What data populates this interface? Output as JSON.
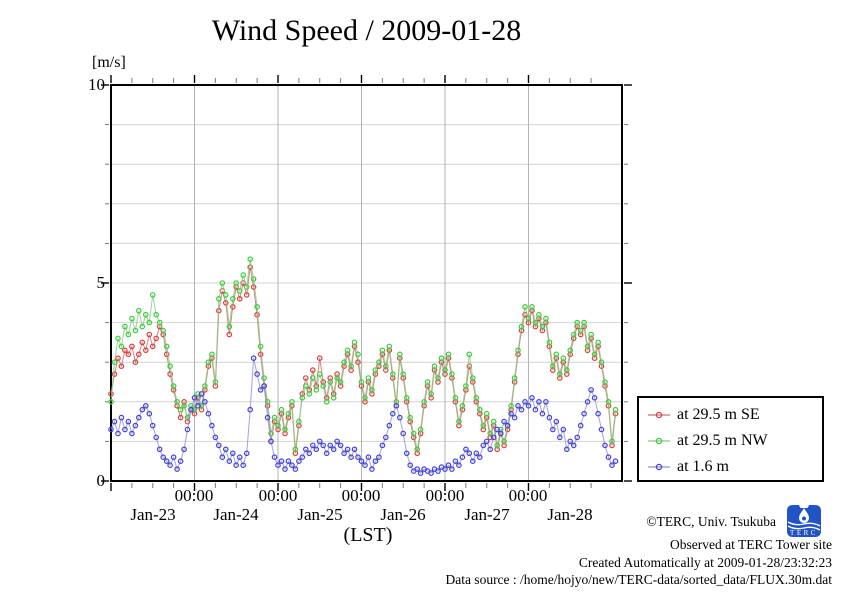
{
  "chart_data": {
    "type": "line",
    "title": "Wind Speed / 2009-01-28",
    "xlabel": "(LST)",
    "ylabel": "[m/s]",
    "ylim": [
      0,
      10
    ],
    "xlim_days": [
      0,
      6.12
    ],
    "x_start_hour": 0,
    "x_step_hours": 1,
    "x_unit": "hours since 2009-01-23 00:00 LST",
    "grid": true,
    "legend_position": "outside-right-bottom",
    "y_tick_labels": [
      "10",
      "5",
      "0"
    ],
    "y_minor_tick_step": 1,
    "x_major_tick_days": [
      1,
      2,
      3,
      4,
      5
    ],
    "x_major_tick_labels": [
      "00:00",
      "00:00",
      "00:00",
      "00:00",
      "00:00"
    ],
    "x_minor_tick_hours": 6,
    "x_day_labels": [
      "Jan-23",
      "Jan-24",
      "Jan-25",
      "Jan-26",
      "Jan-27",
      "Jan-28"
    ],
    "series": [
      {
        "name": "at 29.5 m SE",
        "marker_color": "#e03c3c",
        "line_color": "#cc7070",
        "values": [
          2.2,
          2.7,
          3.1,
          2.9,
          3.3,
          3.2,
          3.4,
          3.0,
          3.2,
          3.5,
          3.3,
          3.7,
          3.4,
          3.6,
          3.9,
          3.7,
          3.2,
          2.7,
          2.3,
          1.9,
          1.6,
          2.0,
          1.5,
          1.8,
          1.7,
          2.1,
          1.8,
          2.3,
          2.9,
          3.1,
          2.4,
          4.3,
          4.8,
          4.5,
          3.7,
          4.4,
          4.9,
          4.6,
          5.0,
          4.7,
          5.4,
          4.9,
          4.2,
          3.2,
          2.4,
          1.9,
          1.0,
          1.5,
          1.3,
          1.7,
          1.2,
          1.6,
          1.9,
          0.7,
          1.4,
          2.2,
          2.6,
          2.3,
          2.8,
          2.4,
          3.1,
          2.5,
          2.1,
          2.6,
          2.2,
          2.7,
          2.4,
          2.9,
          3.2,
          2.8,
          3.4,
          3.0,
          2.4,
          2.0,
          2.5,
          2.2,
          2.7,
          2.9,
          3.2,
          2.8,
          3.3,
          2.6,
          1.9,
          3.1,
          2.6,
          2.0,
          1.5,
          1.1,
          0.7,
          1.2,
          1.9,
          2.4,
          2.1,
          2.8,
          2.5,
          3.0,
          2.7,
          3.1,
          2.6,
          2.0,
          1.4,
          1.8,
          2.3,
          2.9,
          2.5,
          2.0,
          1.7,
          1.3,
          1.6,
          1.1,
          1.4,
          0.8,
          1.2,
          0.9,
          1.3,
          1.8,
          2.5,
          3.2,
          3.8,
          4.2,
          4.0,
          4.3,
          3.9,
          4.1,
          3.8,
          4.0,
          3.4,
          2.8,
          3.1,
          2.6,
          3.0,
          2.7,
          3.2,
          3.6,
          3.9,
          3.7,
          3.9,
          3.3,
          3.6,
          3.1,
          3.4,
          2.9,
          2.4,
          1.9,
          0.9,
          1.7
        ]
      },
      {
        "name": "at 29.5 m NW",
        "marker_color": "#3ccc3c",
        "line_color": "#84cc84",
        "values": [
          2.0,
          3.0,
          3.6,
          3.4,
          3.9,
          3.7,
          4.1,
          3.8,
          4.3,
          3.9,
          4.2,
          4.0,
          4.7,
          4.2,
          4.0,
          3.8,
          3.4,
          2.9,
          2.4,
          2.0,
          1.8,
          1.9,
          1.6,
          1.9,
          1.8,
          2.2,
          1.9,
          2.4,
          3.0,
          3.2,
          2.5,
          4.6,
          5.0,
          4.7,
          3.9,
          4.6,
          5.0,
          4.8,
          5.2,
          4.9,
          5.6,
          5.1,
          4.4,
          3.4,
          2.6,
          2.0,
          1.2,
          1.6,
          1.4,
          1.8,
          1.3,
          1.7,
          2.0,
          0.8,
          1.5,
          2.1,
          2.4,
          2.2,
          2.6,
          2.3,
          2.7,
          2.4,
          2.0,
          2.5,
          2.1,
          2.6,
          2.5,
          3.0,
          3.3,
          2.9,
          3.5,
          3.2,
          2.5,
          2.1,
          2.6,
          2.3,
          2.8,
          3.0,
          3.3,
          2.9,
          3.4,
          2.7,
          2.0,
          3.2,
          2.7,
          2.1,
          1.6,
          1.2,
          0.8,
          1.3,
          2.0,
          2.5,
          2.2,
          2.9,
          2.6,
          3.1,
          2.8,
          3.2,
          2.7,
          2.1,
          1.5,
          1.9,
          2.4,
          3.2,
          2.6,
          2.1,
          1.8,
          1.4,
          1.7,
          1.2,
          1.5,
          0.9,
          1.3,
          1.0,
          1.4,
          1.9,
          2.6,
          3.3,
          3.9,
          4.4,
          4.1,
          4.4,
          4.0,
          4.2,
          3.9,
          4.1,
          3.5,
          2.9,
          3.2,
          2.7,
          3.1,
          2.8,
          3.3,
          3.7,
          4.0,
          3.8,
          4.0,
          3.4,
          3.7,
          3.2,
          3.5,
          3.0,
          2.5,
          2.0,
          1.0,
          1.8
        ]
      },
      {
        "name": "at 1.6 m",
        "marker_color": "#4242d8",
        "line_color": "#9090dd",
        "values": [
          1.3,
          1.5,
          1.2,
          1.6,
          1.3,
          1.5,
          1.2,
          1.4,
          1.6,
          1.8,
          1.9,
          1.7,
          1.4,
          1.1,
          0.8,
          0.6,
          0.5,
          0.4,
          0.6,
          0.3,
          0.5,
          0.8,
          1.3,
          1.8,
          2.1,
          1.9,
          2.2,
          2.0,
          1.7,
          1.4,
          1.1,
          0.9,
          0.6,
          0.8,
          0.5,
          0.7,
          0.4,
          0.6,
          0.4,
          0.7,
          1.8,
          3.1,
          2.7,
          2.3,
          2.4,
          1.6,
          1.0,
          0.6,
          0.4,
          0.5,
          0.3,
          0.5,
          0.4,
          0.3,
          0.5,
          0.6,
          0.8,
          0.7,
          0.9,
          0.8,
          1.0,
          0.9,
          0.7,
          0.9,
          0.8,
          1.0,
          0.9,
          0.7,
          0.8,
          0.6,
          0.8,
          0.6,
          0.5,
          0.4,
          0.6,
          0.3,
          0.5,
          0.6,
          0.9,
          1.1,
          1.4,
          1.7,
          1.9,
          1.6,
          1.2,
          0.7,
          0.4,
          0.25,
          0.3,
          0.2,
          0.3,
          0.25,
          0.2,
          0.3,
          0.25,
          0.35,
          0.3,
          0.4,
          0.3,
          0.5,
          0.4,
          0.6,
          0.8,
          0.7,
          0.5,
          0.7,
          0.6,
          0.9,
          1.0,
          0.8,
          1.1,
          1.3,
          1.2,
          1.5,
          1.4,
          1.7,
          1.6,
          1.9,
          1.8,
          2.0,
          1.9,
          2.1,
          1.8,
          2.0,
          1.7,
          2.0,
          1.6,
          1.3,
          1.5,
          1.1,
          1.3,
          0.8,
          1.0,
          0.9,
          1.1,
          1.4,
          1.7,
          2.0,
          2.3,
          2.1,
          1.7,
          1.3,
          0.9,
          0.6,
          0.4,
          0.5
        ]
      }
    ]
  },
  "footer": {
    "copyright": "©TERC, Univ. Tsukuba",
    "observed": "Observed at TERC Tower site",
    "created": "Created Automatically at 2009-01-28/23:32:23",
    "datasource": "Data source : /home/hojyo/new/TERC-data/sorted_data/FLUX.30m.dat",
    "logo_text": "TERC"
  }
}
